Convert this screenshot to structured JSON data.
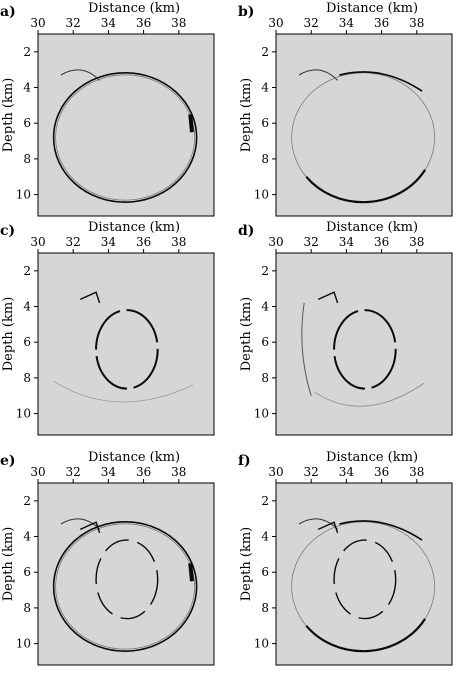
{
  "figure": {
    "panels": [
      {
        "label": "a)",
        "rings": [
          "outer"
        ],
        "variant": "a"
      },
      {
        "label": "b)",
        "rings": [
          "outer"
        ],
        "variant": "b"
      },
      {
        "label": "c)",
        "rings": [
          "inner"
        ],
        "variant": "c"
      },
      {
        "label": "d)",
        "rings": [
          "inner"
        ],
        "variant": "d"
      },
      {
        "label": "e)",
        "rings": [
          "outer",
          "inner"
        ],
        "variant": "a"
      },
      {
        "label": "f)",
        "rings": [
          "outer",
          "inner"
        ],
        "variant": "b"
      }
    ],
    "x_axis": {
      "label": "Distance (km)",
      "ticks": [
        30,
        32,
        34,
        36,
        38
      ],
      "range": [
        30,
        40
      ]
    },
    "y_axis": {
      "label": "Depth (km)",
      "ticks": [
        2,
        4,
        6,
        8,
        10
      ],
      "range": [
        1,
        11.2
      ]
    }
  },
  "colors": {
    "background": "#d6d6d6",
    "reflector": "#0a0a0a",
    "axis": "#000000"
  }
}
